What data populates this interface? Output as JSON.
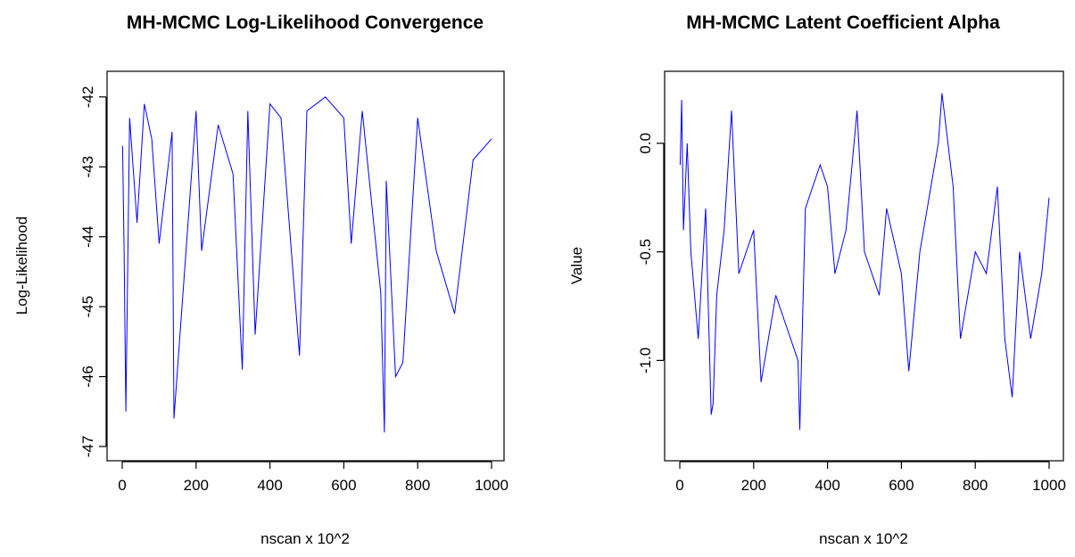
{
  "chart_data": [
    {
      "type": "line",
      "title": "MH-MCMC Log-Likelihood Convergence",
      "xlabel": "nscan x 10^2",
      "ylabel": "Log-Likelihood",
      "xlim": [
        0,
        1000
      ],
      "ylim": [
        -47,
        -41.85
      ],
      "xticks": [
        0,
        200,
        400,
        600,
        800,
        1000
      ],
      "yticks": [
        -47,
        -46,
        -45,
        -44,
        -43,
        -42
      ],
      "grid": false,
      "series_color": "#0000ff",
      "series": [
        {
          "x": [
            1,
            5,
            10,
            20,
            40,
            60,
            80,
            100,
            135,
            140,
            200,
            215,
            260,
            300,
            325,
            340,
            360,
            400,
            430,
            480,
            500,
            550,
            600,
            620,
            650,
            700,
            710,
            715,
            740,
            760,
            800,
            850,
            900,
            950,
            1000
          ],
          "y": [
            -42.7,
            -44.2,
            -46.5,
            -42.3,
            -43.8,
            -42.1,
            -42.6,
            -44.1,
            -42.5,
            -46.6,
            -42.2,
            -44.2,
            -42.4,
            -43.1,
            -45.9,
            -42.2,
            -45.4,
            -42.1,
            -42.3,
            -45.7,
            -42.2,
            -42.0,
            -42.3,
            -44.1,
            -42.2,
            -44.8,
            -46.8,
            -43.2,
            -46.0,
            -45.8,
            -42.3,
            -44.2,
            -45.1,
            -42.9,
            -42.6
          ]
        }
      ]
    },
    {
      "type": "line",
      "title": "MH-MCMC Latent Coefficient Alpha",
      "xlabel": "nscan x 10^2",
      "ylabel": "Value",
      "xlim": [
        0,
        1000
      ],
      "ylim": [
        -1.38,
        0.27
      ],
      "xticks": [
        0,
        200,
        400,
        600,
        800,
        1000
      ],
      "yticks": [
        -1.0,
        -0.5,
        0.0
      ],
      "ytick_labels": [
        "-1.0",
        "-0.5",
        "0.0"
      ],
      "grid": false,
      "series_color": "#0000ff",
      "series": [
        {
          "x": [
            1,
            5,
            10,
            20,
            30,
            50,
            70,
            85,
            90,
            100,
            120,
            140,
            160,
            200,
            220,
            260,
            300,
            320,
            325,
            340,
            360,
            380,
            400,
            420,
            450,
            480,
            500,
            540,
            560,
            600,
            620,
            650,
            680,
            700,
            710,
            740,
            760,
            800,
            830,
            860,
            880,
            900,
            920,
            950,
            980,
            1000
          ],
          "y": [
            -0.1,
            0.2,
            -0.4,
            0.0,
            -0.5,
            -0.9,
            -0.3,
            -1.25,
            -1.2,
            -0.7,
            -0.4,
            0.15,
            -0.6,
            -0.4,
            -1.1,
            -0.7,
            -0.9,
            -1.0,
            -1.32,
            -0.3,
            -0.2,
            -0.1,
            -0.2,
            -0.6,
            -0.4,
            0.15,
            -0.5,
            -0.7,
            -0.3,
            -0.6,
            -1.05,
            -0.5,
            -0.2,
            0.0,
            0.23,
            -0.2,
            -0.9,
            -0.5,
            -0.6,
            -0.2,
            -0.9,
            -1.17,
            -0.5,
            -0.9,
            -0.6,
            -0.25
          ]
        }
      ]
    }
  ]
}
